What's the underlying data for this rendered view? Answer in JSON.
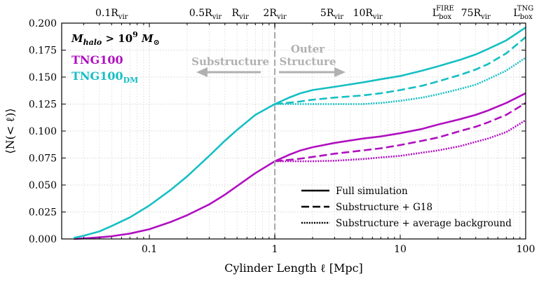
{
  "chart_data": {
    "type": "line",
    "xscale": "log",
    "xlabel": "Cylinder Length ℓ [Mpc]",
    "ylabel": "⟨N(< ℓ)⟩",
    "xlim": [
      0.02,
      100
    ],
    "ylim": [
      0,
      0.2
    ],
    "x_ticks": [
      {
        "value": 0.1,
        "label": "0.1"
      },
      {
        "value": 1,
        "label": "1"
      },
      {
        "value": 10,
        "label": "10"
      },
      {
        "value": 100,
        "label": "100"
      }
    ],
    "y_ticks": [
      {
        "value": 0,
        "label": "0.000"
      },
      {
        "value": 0.025,
        "label": "0.025"
      },
      {
        "value": 0.05,
        "label": "0.050"
      },
      {
        "value": 0.075,
        "label": "0.075"
      },
      {
        "value": 0.1,
        "label": "0.100"
      },
      {
        "value": 0.125,
        "label": "0.125"
      },
      {
        "value": 0.15,
        "label": "0.150"
      },
      {
        "value": 0.175,
        "label": "0.175"
      },
      {
        "value": 0.2,
        "label": "0.200"
      }
    ],
    "top_ticks": [
      {
        "value": 0.05,
        "main": "0.1R",
        "sub": "vir",
        "sup": ""
      },
      {
        "value": 0.28,
        "main": "0.5R",
        "sub": "vir",
        "sup": ""
      },
      {
        "value": 0.53,
        "main": "R",
        "sub": "vir",
        "sup": ""
      },
      {
        "value": 1.0,
        "main": "2R",
        "sub": "vir",
        "sup": ""
      },
      {
        "value": 2.85,
        "main": "5R",
        "sub": "vir",
        "sup": ""
      },
      {
        "value": 5.5,
        "main": "10R",
        "sub": "vir",
        "sup": ""
      },
      {
        "value": 22,
        "main": "L",
        "sub": "box",
        "sup": "FIRE"
      },
      {
        "value": 40,
        "main": "75R",
        "sub": "vir",
        "sup": ""
      },
      {
        "value": 96,
        "main": "L",
        "sub": "box",
        "sup": "TNG"
      }
    ],
    "divider_x": 1,
    "condition": {
      "main": "M",
      "sub": "halo",
      "rel": " > 10",
      "exp": "9",
      "unit": " M",
      "unit_sym": "⊙"
    },
    "region_labels": {
      "left": "Substructure",
      "right_line1": "Outer",
      "right_line2": "Structure"
    },
    "legend": [
      {
        "label": "Full simulation",
        "style": "solid"
      },
      {
        "label": "Substructure + G18",
        "style": "dashed"
      },
      {
        "label": "Substructure + average background",
        "style": "dotted"
      }
    ],
    "series": [
      {
        "name": "TNG100",
        "color": "#b010c0",
        "style": "solid",
        "x": [
          0.025,
          0.03,
          0.04,
          0.05,
          0.07,
          0.1,
          0.15,
          0.2,
          0.3,
          0.4,
          0.5,
          0.7,
          1.0,
          1.3,
          1.6,
          2,
          3,
          5,
          7,
          10,
          15,
          20,
          30,
          40,
          50,
          70,
          100
        ],
        "y": [
          0.0,
          0.0005,
          0.0015,
          0.0025,
          0.005,
          0.009,
          0.016,
          0.022,
          0.032,
          0.041,
          0.049,
          0.061,
          0.072,
          0.078,
          0.082,
          0.085,
          0.089,
          0.093,
          0.095,
          0.098,
          0.102,
          0.106,
          0.111,
          0.115,
          0.119,
          0.126,
          0.135
        ]
      },
      {
        "name": "TNG100 dashed",
        "color": "#b010c0",
        "style": "dashed",
        "x": [
          1.0,
          1.5,
          2,
          3,
          5,
          7,
          10,
          15,
          20,
          30,
          40,
          50,
          70,
          100
        ],
        "y": [
          0.072,
          0.074,
          0.076,
          0.079,
          0.082,
          0.084,
          0.087,
          0.091,
          0.094,
          0.1,
          0.104,
          0.108,
          0.115,
          0.126
        ]
      },
      {
        "name": "TNG100 dotted",
        "color": "#b010c0",
        "style": "dotted",
        "x": [
          1.0,
          1.5,
          2,
          3,
          5,
          7,
          10,
          15,
          20,
          30,
          40,
          50,
          70,
          100
        ],
        "y": [
          0.072,
          0.072,
          0.072,
          0.0725,
          0.074,
          0.0755,
          0.077,
          0.08,
          0.082,
          0.086,
          0.09,
          0.093,
          0.099,
          0.11
        ]
      },
      {
        "name": "TNG100DM",
        "color": "#16bfc4",
        "style": "solid",
        "x": [
          0.025,
          0.03,
          0.04,
          0.05,
          0.07,
          0.1,
          0.15,
          0.2,
          0.3,
          0.4,
          0.5,
          0.7,
          1.0,
          1.3,
          1.6,
          2,
          3,
          5,
          7,
          10,
          15,
          20,
          30,
          40,
          50,
          70,
          100
        ],
        "y": [
          0.001,
          0.003,
          0.007,
          0.012,
          0.02,
          0.031,
          0.046,
          0.058,
          0.077,
          0.091,
          0.101,
          0.115,
          0.125,
          0.131,
          0.135,
          0.138,
          0.141,
          0.145,
          0.148,
          0.151,
          0.156,
          0.16,
          0.166,
          0.171,
          0.176,
          0.184,
          0.196
        ]
      },
      {
        "name": "TNG100DM dashed",
        "color": "#16bfc4",
        "style": "dashed",
        "x": [
          1.0,
          1.5,
          2,
          3,
          5,
          7,
          10,
          15,
          20,
          30,
          40,
          50,
          70,
          100
        ],
        "y": [
          0.125,
          0.127,
          0.129,
          0.131,
          0.133,
          0.135,
          0.138,
          0.142,
          0.146,
          0.152,
          0.157,
          0.162,
          0.172,
          0.187
        ]
      },
      {
        "name": "TNG100DM dotted",
        "color": "#16bfc4",
        "style": "dotted",
        "x": [
          1.0,
          1.5,
          2,
          3,
          5,
          7,
          10,
          15,
          20,
          30,
          40,
          50,
          70,
          100
        ],
        "y": [
          0.125,
          0.125,
          0.125,
          0.125,
          0.125,
          0.126,
          0.128,
          0.131,
          0.134,
          0.139,
          0.143,
          0.148,
          0.156,
          0.168
        ]
      }
    ],
    "series_labels": [
      {
        "main": "TNG100",
        "sub": "",
        "color": "#b010c0"
      },
      {
        "main": "TNG100",
        "sub": "DM",
        "color": "#16bfc4"
      }
    ]
  }
}
